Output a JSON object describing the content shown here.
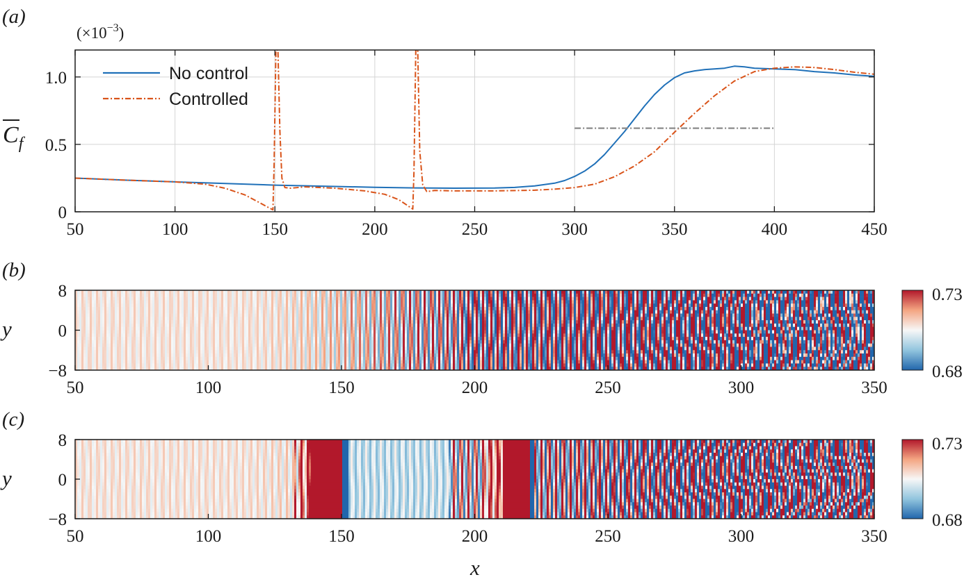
{
  "chart_data": [
    {
      "panel": "(a)",
      "type": "line",
      "xlim": [
        50,
        450
      ],
      "ylim": [
        0,
        1.2
      ],
      "xticks": [
        "50",
        "100",
        "150",
        "200",
        "250",
        "300",
        "350",
        "400",
        "450"
      ],
      "yticks": [
        "0",
        "0.5",
        "1.0"
      ],
      "xlabel": "",
      "ylabel": "C̅f",
      "ylabel_base": "C",
      "ylabel_sub": "f",
      "scale_label": "(×10",
      "scale_exp": "−3",
      "scale_close": ")",
      "grid": true,
      "legend_position": "top-left",
      "series": [
        {
          "name": "No control",
          "color": "#1f70b8",
          "style": "solid",
          "x": [
            50,
            75,
            100,
            120,
            140,
            150,
            160,
            180,
            200,
            220,
            240,
            260,
            270,
            280,
            290,
            295,
            300,
            305,
            310,
            315,
            320,
            325,
            330,
            335,
            340,
            345,
            350,
            355,
            360,
            365,
            370,
            375,
            380,
            385,
            390,
            400,
            410,
            420,
            430,
            440,
            450
          ],
          "y": [
            0.25,
            0.235,
            0.222,
            0.212,
            0.203,
            0.198,
            0.194,
            0.188,
            0.182,
            0.177,
            0.175,
            0.176,
            0.181,
            0.192,
            0.212,
            0.232,
            0.262,
            0.302,
            0.355,
            0.425,
            0.51,
            0.595,
            0.69,
            0.785,
            0.87,
            0.94,
            0.995,
            1.03,
            1.045,
            1.055,
            1.06,
            1.065,
            1.08,
            1.075,
            1.065,
            1.06,
            1.055,
            1.04,
            1.03,
            1.015,
            1.005
          ]
        },
        {
          "name": "Controlled",
          "color": "#d95319",
          "style": "dashdot",
          "x": [
            50,
            75,
            100,
            115,
            125,
            135,
            142,
            147,
            149,
            149.6,
            150.5,
            151.5,
            152.5,
            153.5,
            155,
            158,
            165,
            180,
            195,
            205,
            212,
            217,
            219,
            219.6,
            220.5,
            221.5,
            222.5,
            224,
            226,
            230,
            240,
            260,
            280,
            290,
            300,
            310,
            320,
            330,
            340,
            350,
            360,
            370,
            380,
            390,
            400,
            410,
            420,
            430,
            440,
            450
          ],
          "y": [
            0.25,
            0.235,
            0.222,
            0.205,
            0.175,
            0.125,
            0.07,
            0.03,
            0.015,
            0.35,
            1.2,
            1.2,
            0.6,
            0.25,
            0.18,
            0.175,
            0.185,
            0.175,
            0.155,
            0.13,
            0.09,
            0.04,
            0.02,
            0.3,
            1.2,
            1.2,
            0.45,
            0.2,
            0.15,
            0.158,
            0.155,
            0.155,
            0.16,
            0.168,
            0.18,
            0.205,
            0.26,
            0.34,
            0.445,
            0.59,
            0.73,
            0.86,
            0.97,
            1.04,
            1.065,
            1.075,
            1.07,
            1.055,
            1.035,
            1.02
          ]
        },
        {
          "name": "",
          "color": "#8a8a8a",
          "style": "dashdot",
          "x": [
            300,
            400
          ],
          "y": [
            0.62,
            0.62
          ]
        }
      ]
    },
    {
      "panel": "(b)",
      "type": "heatmap",
      "xlim": [
        50,
        350
      ],
      "ylim": [
        -8,
        8
      ],
      "xticks": [
        "50",
        "100",
        "150",
        "200",
        "250",
        "300",
        "350"
      ],
      "yticks": [
        "8",
        "0",
        "−8"
      ],
      "ylabel": "y",
      "colorbar": {
        "min": 0.68,
        "max": 0.73,
        "min_label": "0.68",
        "max_label": "0.73",
        "colormap": "RdBu_r"
      }
    },
    {
      "panel": "(c)",
      "type": "heatmap",
      "xlim": [
        50,
        350
      ],
      "ylim": [
        -8,
        8
      ],
      "xticks": [
        "50",
        "100",
        "150",
        "200",
        "250",
        "300",
        "350"
      ],
      "yticks": [
        "8",
        "0",
        "−8"
      ],
      "ylabel": "y",
      "xlabel": "x",
      "colorbar": {
        "min": 0.68,
        "max": 0.73,
        "min_label": "0.68",
        "max_label": "0.73",
        "colormap": "RdBu_r"
      },
      "control_strips": [
        [
          132,
          150
        ],
        [
          203,
          220
        ]
      ]
    }
  ]
}
